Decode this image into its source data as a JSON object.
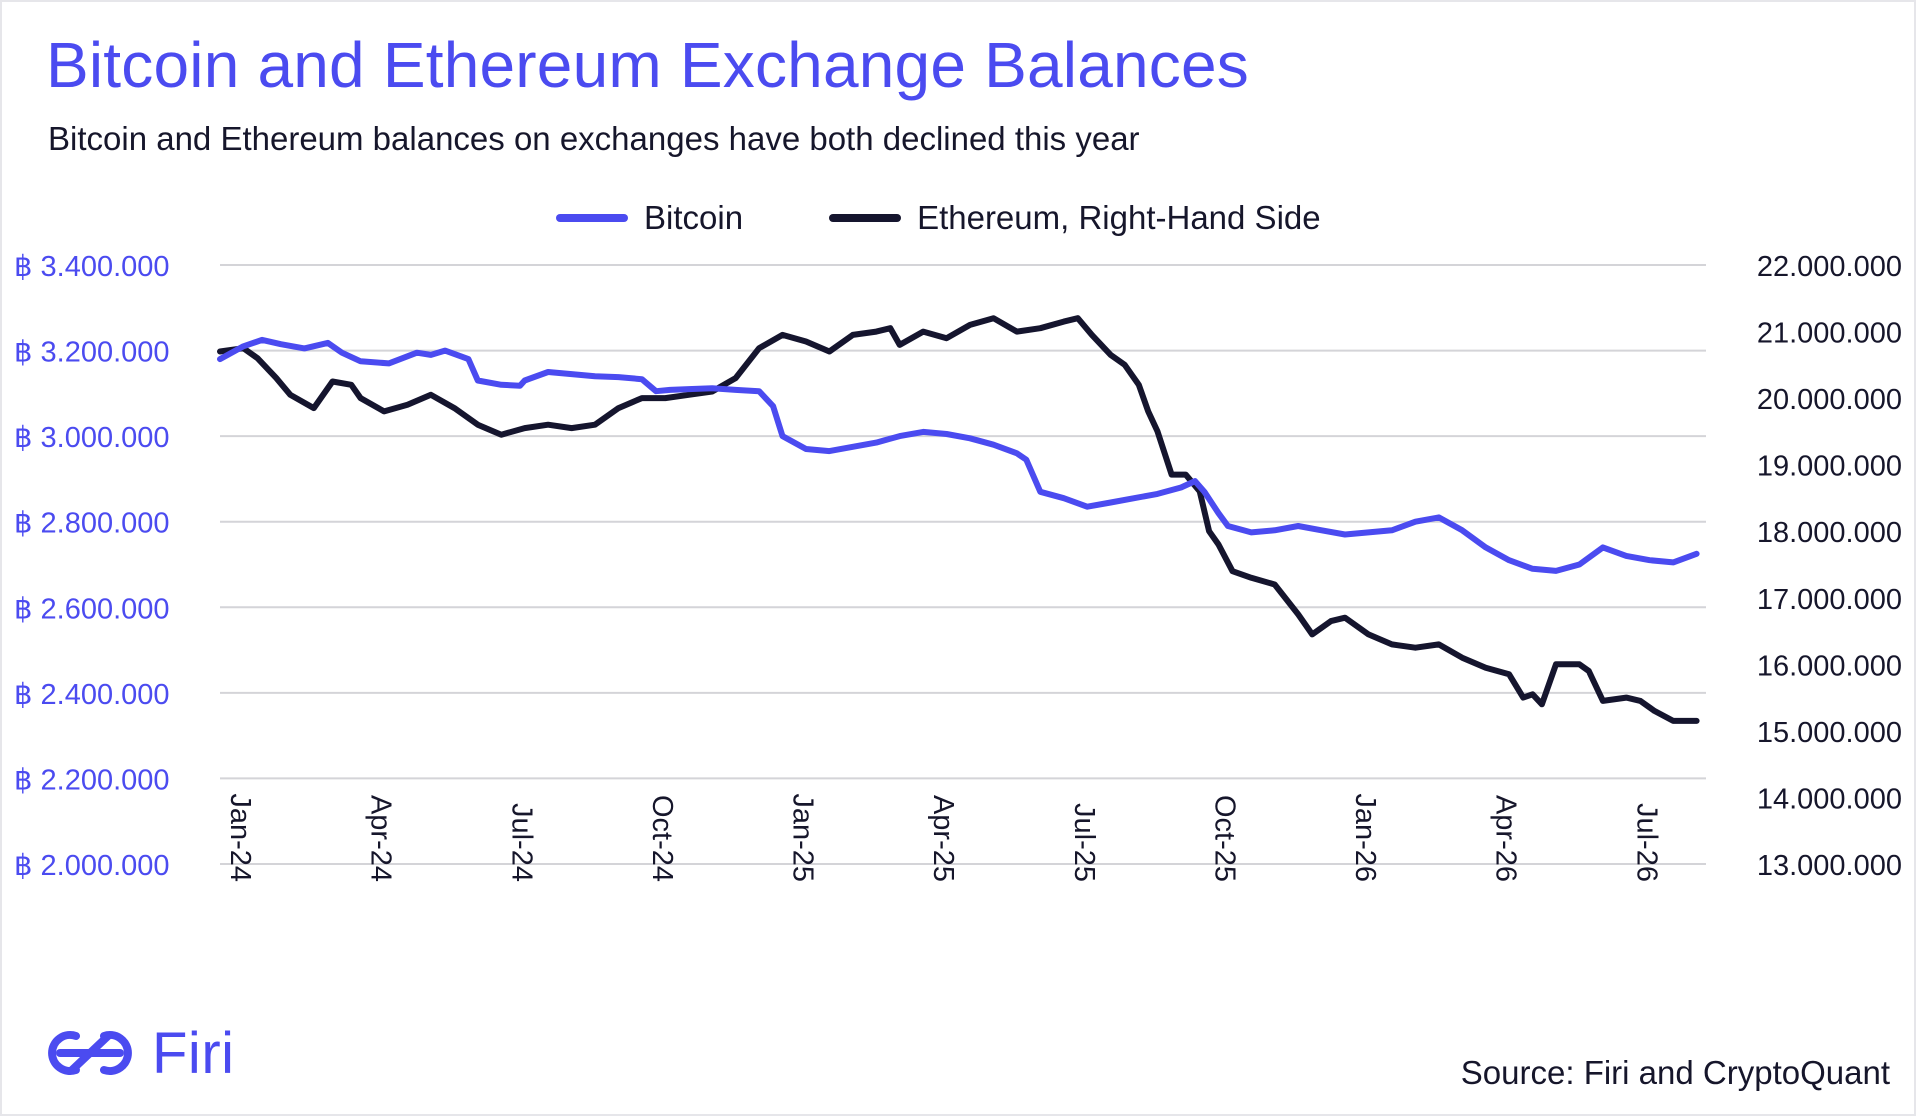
{
  "title": "Bitcoin and Ethereum Exchange Balances",
  "subtitle": "Bitcoin and Ethereum balances on exchanges have both declined this year",
  "source": "Source: Firi and CryptoQuant",
  "logo_text": "Firi",
  "colors": {
    "bitcoin": "#4b4bf0",
    "ethereum": "#15152e",
    "grid": "#d4d4d8",
    "text": "#16162b"
  },
  "chart_data": {
    "type": "line",
    "title": "Bitcoin and Ethereum Exchange Balances",
    "legend": [
      "Bitcoin",
      "Ethereum, Right-Hand Side"
    ],
    "legend_position": "top-center",
    "grid": true,
    "x_ticks": [
      "Jan-24",
      "Apr-24",
      "Jul-24",
      "Oct-24",
      "Jan-25",
      "Apr-25",
      "Jul-25",
      "Oct-25",
      "Jan-26",
      "Apr-26",
      "Jul-26"
    ],
    "x_tick_positions": [
      0,
      3,
      6,
      9,
      12,
      15,
      18,
      21,
      24,
      27,
      30
    ],
    "x_range": [
      0,
      31.7
    ],
    "y_left": {
      "min": 2000000,
      "max": 3400000,
      "tick_labels": [
        "฿ 3.400.000",
        "฿ 3.200.000",
        "฿ 3.000.000",
        "฿ 2.800.000",
        "฿ 2.600.000",
        "฿ 2.400.000",
        "฿ 2.200.000",
        "฿ 2.000.000"
      ]
    },
    "y_right": {
      "min": 13000000,
      "max": 22000000,
      "tick_labels": [
        "22.000.000",
        "21.000.000",
        "20.000.000",
        "19.000.000",
        "18.000.000",
        "17.000.000",
        "16.000.000",
        "15.000.000",
        "14.000.000",
        "13.000.000"
      ]
    },
    "series": [
      {
        "name": "Bitcoin",
        "axis": "left",
        "x": [
          0,
          0.5,
          0.9,
          1.3,
          1.8,
          2.3,
          2.6,
          3.0,
          3.6,
          4.2,
          4.5,
          4.8,
          5.3,
          5.5,
          6.0,
          6.4,
          6.5,
          7.0,
          7.5,
          8.0,
          8.5,
          9.0,
          9.3,
          9.6,
          10.0,
          10.5,
          11.0,
          11.5,
          11.8,
          12.0,
          12.5,
          13.0,
          13.5,
          14.0,
          14.5,
          15.0,
          15.5,
          16.0,
          16.5,
          17.0,
          17.2,
          17.5,
          18.0,
          18.5,
          19.0,
          19.5,
          20.0,
          20.5,
          20.8,
          21.0,
          21.3,
          21.5,
          22.0,
          22.5,
          23.0,
          23.5,
          24.0,
          24.5,
          25.0,
          25.5,
          26.0,
          26.5,
          27.0,
          27.5,
          28.0,
          28.5,
          29.0,
          29.5,
          30.0,
          30.5,
          31.0,
          31.5
        ],
        "values": [
          3180000,
          3210000,
          3225000,
          3215000,
          3205000,
          3218000,
          3195000,
          3175000,
          3170000,
          3195000,
          3190000,
          3200000,
          3180000,
          3130000,
          3120000,
          3118000,
          3130000,
          3150000,
          3145000,
          3140000,
          3138000,
          3133000,
          3105000,
          3108000,
          3110000,
          3112000,
          3108000,
          3105000,
          3070000,
          3000000,
          2970000,
          2965000,
          2975000,
          2985000,
          3000000,
          3010000,
          3005000,
          2995000,
          2980000,
          2960000,
          2945000,
          2870000,
          2855000,
          2835000,
          2845000,
          2855000,
          2865000,
          2880000,
          2895000,
          2870000,
          2820000,
          2790000,
          2775000,
          2780000,
          2790000,
          2780000,
          2770000,
          2775000,
          2780000,
          2800000,
          2810000,
          2780000,
          2740000,
          2710000,
          2690000,
          2685000,
          2700000,
          2740000,
          2720000,
          2710000,
          2705000,
          2725000
        ]
      },
      {
        "name": "Ethereum, Right-Hand Side",
        "axis": "right",
        "x": [
          0,
          0.5,
          0.8,
          1.2,
          1.5,
          2.0,
          2.4,
          2.8,
          3.0,
          3.5,
          4.0,
          4.5,
          5.0,
          5.5,
          6.0,
          6.5,
          7.0,
          7.5,
          8.0,
          8.5,
          9.0,
          9.5,
          10.0,
          10.5,
          11.0,
          11.5,
          12.0,
          12.5,
          13.0,
          13.5,
          14.0,
          14.3,
          14.5,
          15.0,
          15.5,
          16.0,
          16.5,
          17.0,
          17.5,
          18.0,
          18.3,
          18.6,
          19.0,
          19.3,
          19.6,
          19.8,
          20.0,
          20.3,
          20.6,
          20.9,
          21.1,
          21.3,
          21.6,
          22.0,
          22.5,
          23.0,
          23.3,
          23.7,
          24.0,
          24.5,
          25.0,
          25.5,
          26.0,
          26.5,
          27.0,
          27.5,
          27.8,
          28.0,
          28.2,
          28.5,
          28.8,
          29.0,
          29.2,
          29.5,
          30.0,
          30.3,
          30.6,
          31.0,
          31.5
        ],
        "values": [
          20700000,
          20750000,
          20600000,
          20300000,
          20050000,
          19850000,
          20250000,
          20200000,
          20000000,
          19800000,
          19900000,
          20050000,
          19850000,
          19600000,
          19450000,
          19550000,
          19600000,
          19550000,
          19600000,
          19850000,
          20000000,
          20000000,
          20050000,
          20100000,
          20300000,
          20750000,
          20950000,
          20850000,
          20700000,
          20950000,
          21000000,
          21050000,
          20800000,
          21000000,
          20900000,
          21100000,
          21200000,
          21000000,
          21050000,
          21150000,
          21200000,
          20950000,
          20650000,
          20500000,
          20200000,
          19800000,
          19500000,
          18850000,
          18850000,
          18600000,
          18000000,
          17800000,
          17400000,
          17300000,
          17200000,
          16750000,
          16450000,
          16650000,
          16700000,
          16450000,
          16300000,
          16250000,
          16300000,
          16100000,
          15950000,
          15850000,
          15500000,
          15550000,
          15400000,
          16000000,
          16000000,
          16000000,
          15900000,
          15450000,
          15500000,
          15450000,
          15300000,
          15150000,
          15150000
        ]
      }
    ]
  }
}
